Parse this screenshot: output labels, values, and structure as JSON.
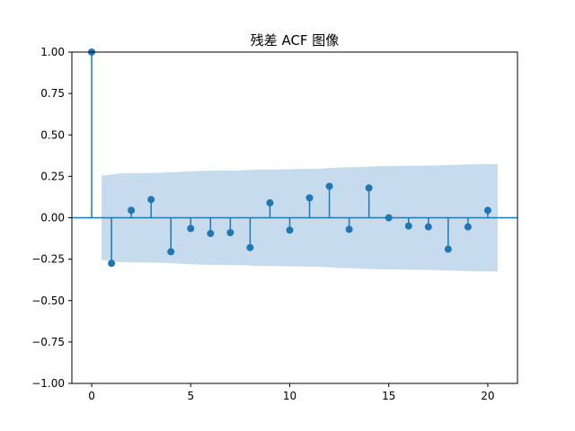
{
  "chart_data": {
    "type": "stem",
    "title": "残差 ACF 图像",
    "xlabel": "",
    "ylabel": "",
    "xlim": [
      -1,
      21.5
    ],
    "ylim": [
      -1.0,
      1.0
    ],
    "xticks": [
      0,
      5,
      10,
      15,
      20
    ],
    "xtick_labels": [
      "0",
      "5",
      "10",
      "15",
      "20"
    ],
    "yticks": [
      -1.0,
      -0.75,
      -0.5,
      -0.25,
      0.0,
      0.25,
      0.5,
      0.75,
      1.0
    ],
    "ytick_labels": [
      "−1.00",
      "−0.75",
      "−0.50",
      "−0.25",
      "0.00",
      "0.25",
      "0.50",
      "0.75",
      "1.00"
    ],
    "grid": false,
    "legend": "none",
    "lags": [
      0,
      1,
      2,
      3,
      4,
      5,
      6,
      7,
      8,
      9,
      10,
      11,
      12,
      13,
      14,
      15,
      16,
      17,
      18,
      19,
      20
    ],
    "values": [
      1.0,
      -0.275,
      0.045,
      0.11,
      -0.205,
      -0.065,
      -0.095,
      -0.09,
      -0.18,
      0.09,
      -0.075,
      0.12,
      0.19,
      -0.07,
      0.18,
      0.0,
      -0.05,
      -0.055,
      -0.19,
      -0.055,
      0.045
    ],
    "confidence_band": {
      "x": [
        0.5,
        1.5,
        2.5,
        3.5,
        4.5,
        5.5,
        6.5,
        7.5,
        8.5,
        9.5,
        10.5,
        11.5,
        12.5,
        13.5,
        14.5,
        15.5,
        16.5,
        17.5,
        18.5,
        19.5,
        20.5
      ],
      "upper": [
        0.255,
        0.268,
        0.27,
        0.272,
        0.278,
        0.283,
        0.285,
        0.286,
        0.291,
        0.292,
        0.294,
        0.296,
        0.303,
        0.306,
        0.312,
        0.313,
        0.314,
        0.316,
        0.32,
        0.324,
        0.324
      ],
      "lower": [
        -0.255,
        -0.268,
        -0.27,
        -0.272,
        -0.278,
        -0.283,
        -0.285,
        -0.286,
        -0.291,
        -0.292,
        -0.294,
        -0.296,
        -0.303,
        -0.306,
        -0.312,
        -0.313,
        -0.314,
        -0.316,
        -0.32,
        -0.324,
        -0.324
      ]
    },
    "colors": {
      "stem": "#1f77b4",
      "band": "#c6dbed",
      "axes": "#000000"
    }
  }
}
